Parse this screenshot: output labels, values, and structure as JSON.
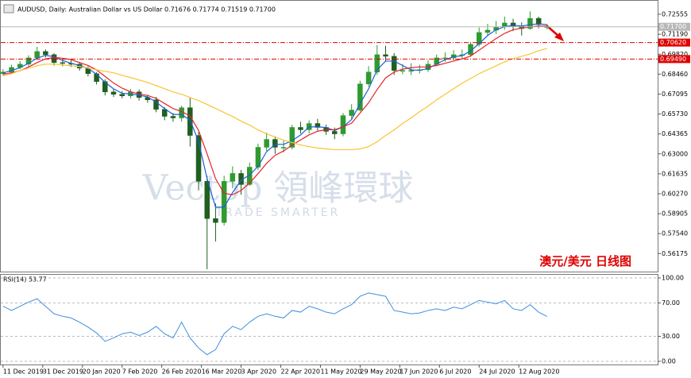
{
  "chart_data": [
    {
      "type": "candlestick",
      "title": "AUDUSD, Daily: Australian Dollar vs US Dollar  0.71676 0.71774 0.71519 0.71700",
      "annotation": "澳元/美元  日线图",
      "watermark": "Vectop 領峰環球",
      "watermark_subtitle": "TRADE SMARTER",
      "up_color": "#2f9a2f",
      "down_color": "#1f5f1f",
      "x": [
        0,
        3,
        6,
        9,
        12,
        15,
        18,
        21,
        24,
        27,
        30,
        33,
        36,
        39,
        42,
        45,
        48,
        51,
        54,
        57,
        60,
        63,
        66,
        69,
        72,
        75,
        78,
        81,
        84,
        87,
        90,
        93,
        96,
        99,
        102,
        105,
        108,
        111,
        114,
        117,
        120,
        123,
        126,
        129,
        132,
        135,
        138,
        141,
        144,
        147,
        150,
        153,
        156,
        159,
        162,
        165,
        168,
        171,
        174,
        177,
        180,
        183,
        186,
        189,
        192
      ],
      "open": [
        0.685,
        0.686,
        0.6892,
        0.6914,
        0.6957,
        0.7001,
        0.6979,
        0.6925,
        0.6919,
        0.6914,
        0.6887,
        0.6849,
        0.6795,
        0.6724,
        0.6708,
        0.6697,
        0.6724,
        0.6686,
        0.667,
        0.6605,
        0.6557,
        0.6546,
        0.6616,
        0.6426,
        0.6112,
        0.5857,
        0.583,
        0.6112,
        0.6166,
        0.609,
        0.6209,
        0.6345,
        0.6399,
        0.6345,
        0.6345,
        0.6481,
        0.6465,
        0.6508,
        0.6481,
        0.6454,
        0.6437,
        0.6562,
        0.66,
        0.6779,
        0.686,
        0.6979,
        0.6968,
        0.6871,
        0.6871,
        0.6871,
        0.6876,
        0.6914,
        0.6957,
        0.6957,
        0.6979,
        0.6979,
        0.705,
        0.7131,
        0.7147,
        0.7169,
        0.7196,
        0.7174,
        0.7158,
        0.7228,
        0.71676
      ],
      "high": [
        0.688,
        0.691,
        0.6935,
        0.6975,
        0.7033,
        0.7015,
        0.699,
        0.6945,
        0.694,
        0.693,
        0.69,
        0.686,
        0.681,
        0.6745,
        0.673,
        0.6745,
        0.674,
        0.6705,
        0.669,
        0.662,
        0.658,
        0.663,
        0.6685,
        0.645,
        0.615,
        0.596,
        0.615,
        0.6215,
        0.619,
        0.624,
        0.637,
        0.6445,
        0.642,
        0.639,
        0.65,
        0.652,
        0.653,
        0.654,
        0.65,
        0.648,
        0.658,
        0.664,
        0.68,
        0.69,
        0.7045,
        0.704,
        0.699,
        0.6915,
        0.692,
        0.691,
        0.694,
        0.698,
        0.6995,
        0.701,
        0.7015,
        0.7065,
        0.7165,
        0.719,
        0.721,
        0.724,
        0.7225,
        0.72,
        0.7276,
        0.724,
        0.71774
      ],
      "low": [
        0.6835,
        0.6845,
        0.688,
        0.69,
        0.6945,
        0.696,
        0.6905,
        0.69,
        0.6895,
        0.687,
        0.683,
        0.6775,
        0.67,
        0.669,
        0.668,
        0.668,
        0.6665,
        0.665,
        0.6585,
        0.653,
        0.652,
        0.652,
        0.635,
        0.605,
        0.551,
        0.57,
        0.581,
        0.6065,
        0.602,
        0.608,
        0.619,
        0.632,
        0.63,
        0.631,
        0.633,
        0.644,
        0.644,
        0.646,
        0.643,
        0.64,
        0.642,
        0.654,
        0.659,
        0.676,
        0.684,
        0.693,
        0.684,
        0.6845,
        0.684,
        0.685,
        0.686,
        0.69,
        0.693,
        0.694,
        0.695,
        0.6965,
        0.7035,
        0.711,
        0.712,
        0.715,
        0.714,
        0.711,
        0.715,
        0.716,
        0.71519
      ],
      "close": [
        0.686,
        0.6892,
        0.6914,
        0.6957,
        0.7001,
        0.6979,
        0.6925,
        0.6919,
        0.6914,
        0.6887,
        0.6849,
        0.6795,
        0.6724,
        0.6708,
        0.6697,
        0.6724,
        0.6686,
        0.667,
        0.6605,
        0.6557,
        0.6546,
        0.6616,
        0.6426,
        0.6112,
        0.5857,
        0.583,
        0.6112,
        0.6166,
        0.609,
        0.6209,
        0.6345,
        0.6399,
        0.6345,
        0.6345,
        0.6481,
        0.6465,
        0.6508,
        0.6481,
        0.6454,
        0.6437,
        0.6562,
        0.66,
        0.6779,
        0.686,
        0.6979,
        0.6968,
        0.6871,
        0.6871,
        0.6871,
        0.6876,
        0.6914,
        0.6957,
        0.6957,
        0.6979,
        0.6979,
        0.705,
        0.7131,
        0.7147,
        0.7169,
        0.7196,
        0.7174,
        0.7158,
        0.7228,
        0.7185,
        0.717
      ],
      "series": [
        {
          "color": "#1e5fd8",
          "values": [
            0.6855,
            0.687,
            0.689,
            0.692,
            0.6955,
            0.6975,
            0.6965,
            0.694,
            0.692,
            0.6905,
            0.6885,
            0.6845,
            0.679,
            0.6745,
            0.6715,
            0.671,
            0.6702,
            0.669,
            0.6655,
            0.661,
            0.657,
            0.657,
            0.653,
            0.6385,
            0.613,
            0.5935,
            0.5935,
            0.6035,
            0.612,
            0.6155,
            0.6215,
            0.6315,
            0.6365,
            0.6365,
            0.639,
            0.643,
            0.6485,
            0.6485,
            0.648,
            0.646,
            0.6485,
            0.6535,
            0.6645,
            0.6745,
            0.6875,
            0.6935,
            0.6935,
            0.6905,
            0.6875,
            0.6872,
            0.6885,
            0.6915,
            0.6945,
            0.6965,
            0.6972,
            0.7005,
            0.7055,
            0.711,
            0.715,
            0.717,
            0.718,
            0.7175,
            0.7185,
            0.719,
            0.7185
          ]
        },
        {
          "color": "#e5232b",
          "values": [
            0.6845,
            0.6855,
            0.687,
            0.6895,
            0.6925,
            0.695,
            0.696,
            0.6955,
            0.6945,
            0.6925,
            0.6905,
            0.6875,
            0.683,
            0.6785,
            0.675,
            0.6725,
            0.671,
            0.67,
            0.668,
            0.6645,
            0.661,
            0.659,
            0.656,
            0.646,
            0.63,
            0.613,
            0.603,
            0.602,
            0.605,
            0.61,
            0.6165,
            0.6235,
            0.629,
            0.632,
            0.636,
            0.6395,
            0.643,
            0.6455,
            0.6465,
            0.6465,
            0.6485,
            0.651,
            0.658,
            0.665,
            0.674,
            0.682,
            0.686,
            0.688,
            0.689,
            0.6895,
            0.6895,
            0.6905,
            0.692,
            0.6935,
            0.695,
            0.697,
            0.701,
            0.705,
            0.709,
            0.7125,
            0.715,
            0.716,
            0.717,
            0.7175,
            0.7175
          ]
        },
        {
          "color": "#f7c531",
          "values": [
            0.6833,
            0.6849,
            0.6871,
            0.6887,
            0.6903,
            0.6914,
            0.6914,
            0.6909,
            0.6903,
            0.6898,
            0.6887,
            0.6876,
            0.6865,
            0.6855,
            0.6838,
            0.6822,
            0.6806,
            0.6789,
            0.6768,
            0.6746,
            0.6724,
            0.6708,
            0.6686,
            0.6665,
            0.6638,
            0.6611,
            0.6583,
            0.6556,
            0.6524,
            0.6497,
            0.6464,
            0.6437,
            0.6416,
            0.6394,
            0.6378,
            0.6361,
            0.635,
            0.634,
            0.6334,
            0.6329,
            0.6329,
            0.6329,
            0.6334,
            0.635,
            0.6383,
            0.6426,
            0.6464,
            0.6508,
            0.6546,
            0.6589,
            0.6627,
            0.667,
            0.6708,
            0.6746,
            0.6784,
            0.6816,
            0.6849,
            0.6876,
            0.6903,
            0.693,
            0.6952,
            0.6968,
            0.6984,
            0.7006,
            0.7022
          ]
        }
      ],
      "levels": [
        {
          "value": 0.7062,
          "label": "0.70620",
          "color": "#e00000"
        },
        {
          "value": 0.6949,
          "label": "0.69490",
          "color": "#e00000"
        }
      ],
      "last_price": {
        "value": 0.717,
        "label": "0.71700",
        "color": "#b8b8b8"
      },
      "xlim": [
        -0.8,
        231
      ],
      "ylim": [
        0.5494,
        0.7348
      ],
      "yticks": [
        0.72555,
        {
          "value": 0.7119,
          "label": "0.71190"
        },
        {
          "value": 0.6982,
          "label": "0.69820"
        },
        {
          "value": 0.6846,
          "label": "0.68460"
        },
        0.67095,
        {
          "value": 0.6573,
          "label": "0.65730"
        },
        0.64365,
        {
          "value": 0.63,
          "label": "0.63000"
        },
        0.61635,
        {
          "value": 0.6027,
          "label": "0.60270"
        },
        0.58905,
        {
          "value": 0.5754,
          "label": "0.57540"
        },
        0.56175
      ]
    },
    {
      "type": "line",
      "title": "RSI(14) 53.77",
      "color": "#3d8fe0",
      "x": [
        0,
        3,
        6,
        9,
        12,
        15,
        18,
        21,
        24,
        27,
        30,
        33,
        36,
        39,
        42,
        45,
        48,
        51,
        54,
        57,
        60,
        63,
        66,
        69,
        72,
        75,
        78,
        81,
        84,
        87,
        90,
        93,
        96,
        99,
        102,
        105,
        108,
        111,
        114,
        117,
        120,
        123,
        126,
        129,
        132,
        135,
        138,
        141,
        144,
        147,
        150,
        153,
        156,
        159,
        162,
        165,
        168,
        171,
        174,
        177,
        180,
        183,
        186,
        189,
        192
      ],
      "values": [
        66,
        61,
        66,
        71,
        75,
        66,
        57,
        54,
        52,
        47,
        41,
        34,
        24,
        28,
        33,
        35,
        31,
        35,
        42,
        33,
        28,
        47,
        28,
        16,
        8,
        14,
        33,
        42,
        38,
        47,
        54,
        57,
        54,
        52,
        61,
        59,
        66,
        63,
        59,
        57,
        63,
        68,
        78,
        82,
        80,
        78,
        61,
        59,
        57,
        58,
        61,
        63,
        61,
        65,
        63,
        68,
        73,
        71,
        69,
        73,
        63,
        61,
        68,
        59,
        53.77
      ],
      "xlim": [
        -0.8,
        231
      ],
      "ylim": [
        -3.8,
        103.8
      ],
      "yticks": [
        {
          "value": 100,
          "label": "100.00"
        },
        {
          "value": 70,
          "label": "70.00"
        },
        {
          "value": 30,
          "label": "30.00"
        },
        {
          "value": 0,
          "label": "0.00"
        }
      ],
      "xticks": [
        {
          "value": 0,
          "label": "11 Dec 2019"
        },
        {
          "value": 14,
          "label": "31 Dec 2019"
        },
        {
          "value": 28,
          "label": "20 Jan 2020"
        },
        {
          "value": 42,
          "label": "7 Feb 2020"
        },
        {
          "value": 56,
          "label": "26 Feb 2020"
        },
        {
          "value": 70,
          "label": "16 Mar 2020"
        },
        {
          "value": 84,
          "label": "3 Apr 2020"
        },
        {
          "value": 98,
          "label": "22 Apr 2020"
        },
        {
          "value": 112,
          "label": "11 May 2020"
        },
        {
          "value": 126,
          "label": "29 May 2020"
        },
        {
          "value": 140,
          "label": "17 Jun 2020"
        },
        {
          "value": 154,
          "label": "6 Jul 2020"
        },
        {
          "value": 168,
          "label": "24 Jul 2020"
        },
        {
          "value": 182,
          "label": "12 Aug 2020"
        }
      ]
    }
  ]
}
